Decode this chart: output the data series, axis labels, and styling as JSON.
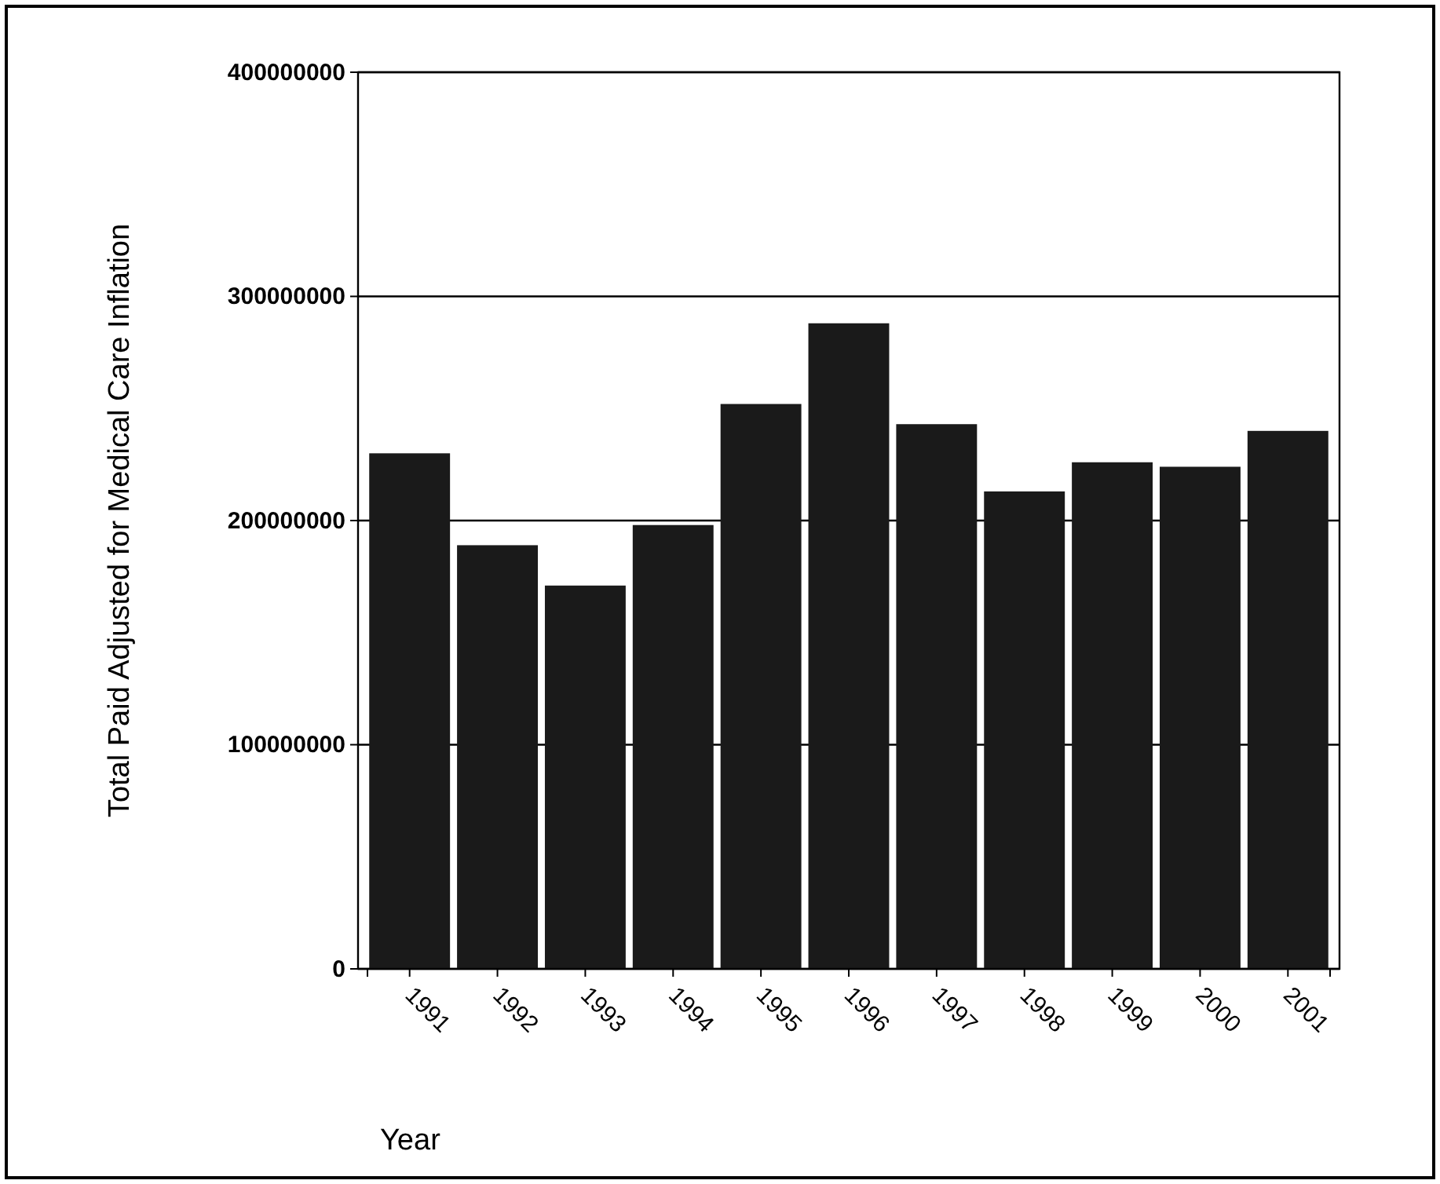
{
  "chart_data": {
    "type": "bar",
    "xlabel": "Year",
    "ylabel": "Total Paid Adjusted for Medical Care Inflation",
    "categories": [
      "1991",
      "1992",
      "1993",
      "1994",
      "1995",
      "1996",
      "1997",
      "1998",
      "1999",
      "2000",
      "2001"
    ],
    "values": [
      230000000,
      189000000,
      171000000,
      198000000,
      252000000,
      288000000,
      243000000,
      213000000,
      226000000,
      224000000,
      240000000
    ],
    "color": "#1a1a1a",
    "ylim": [
      0,
      400000000
    ],
    "yticks": [
      0,
      100000000,
      200000000,
      300000000,
      400000000
    ],
    "grid": "y"
  }
}
